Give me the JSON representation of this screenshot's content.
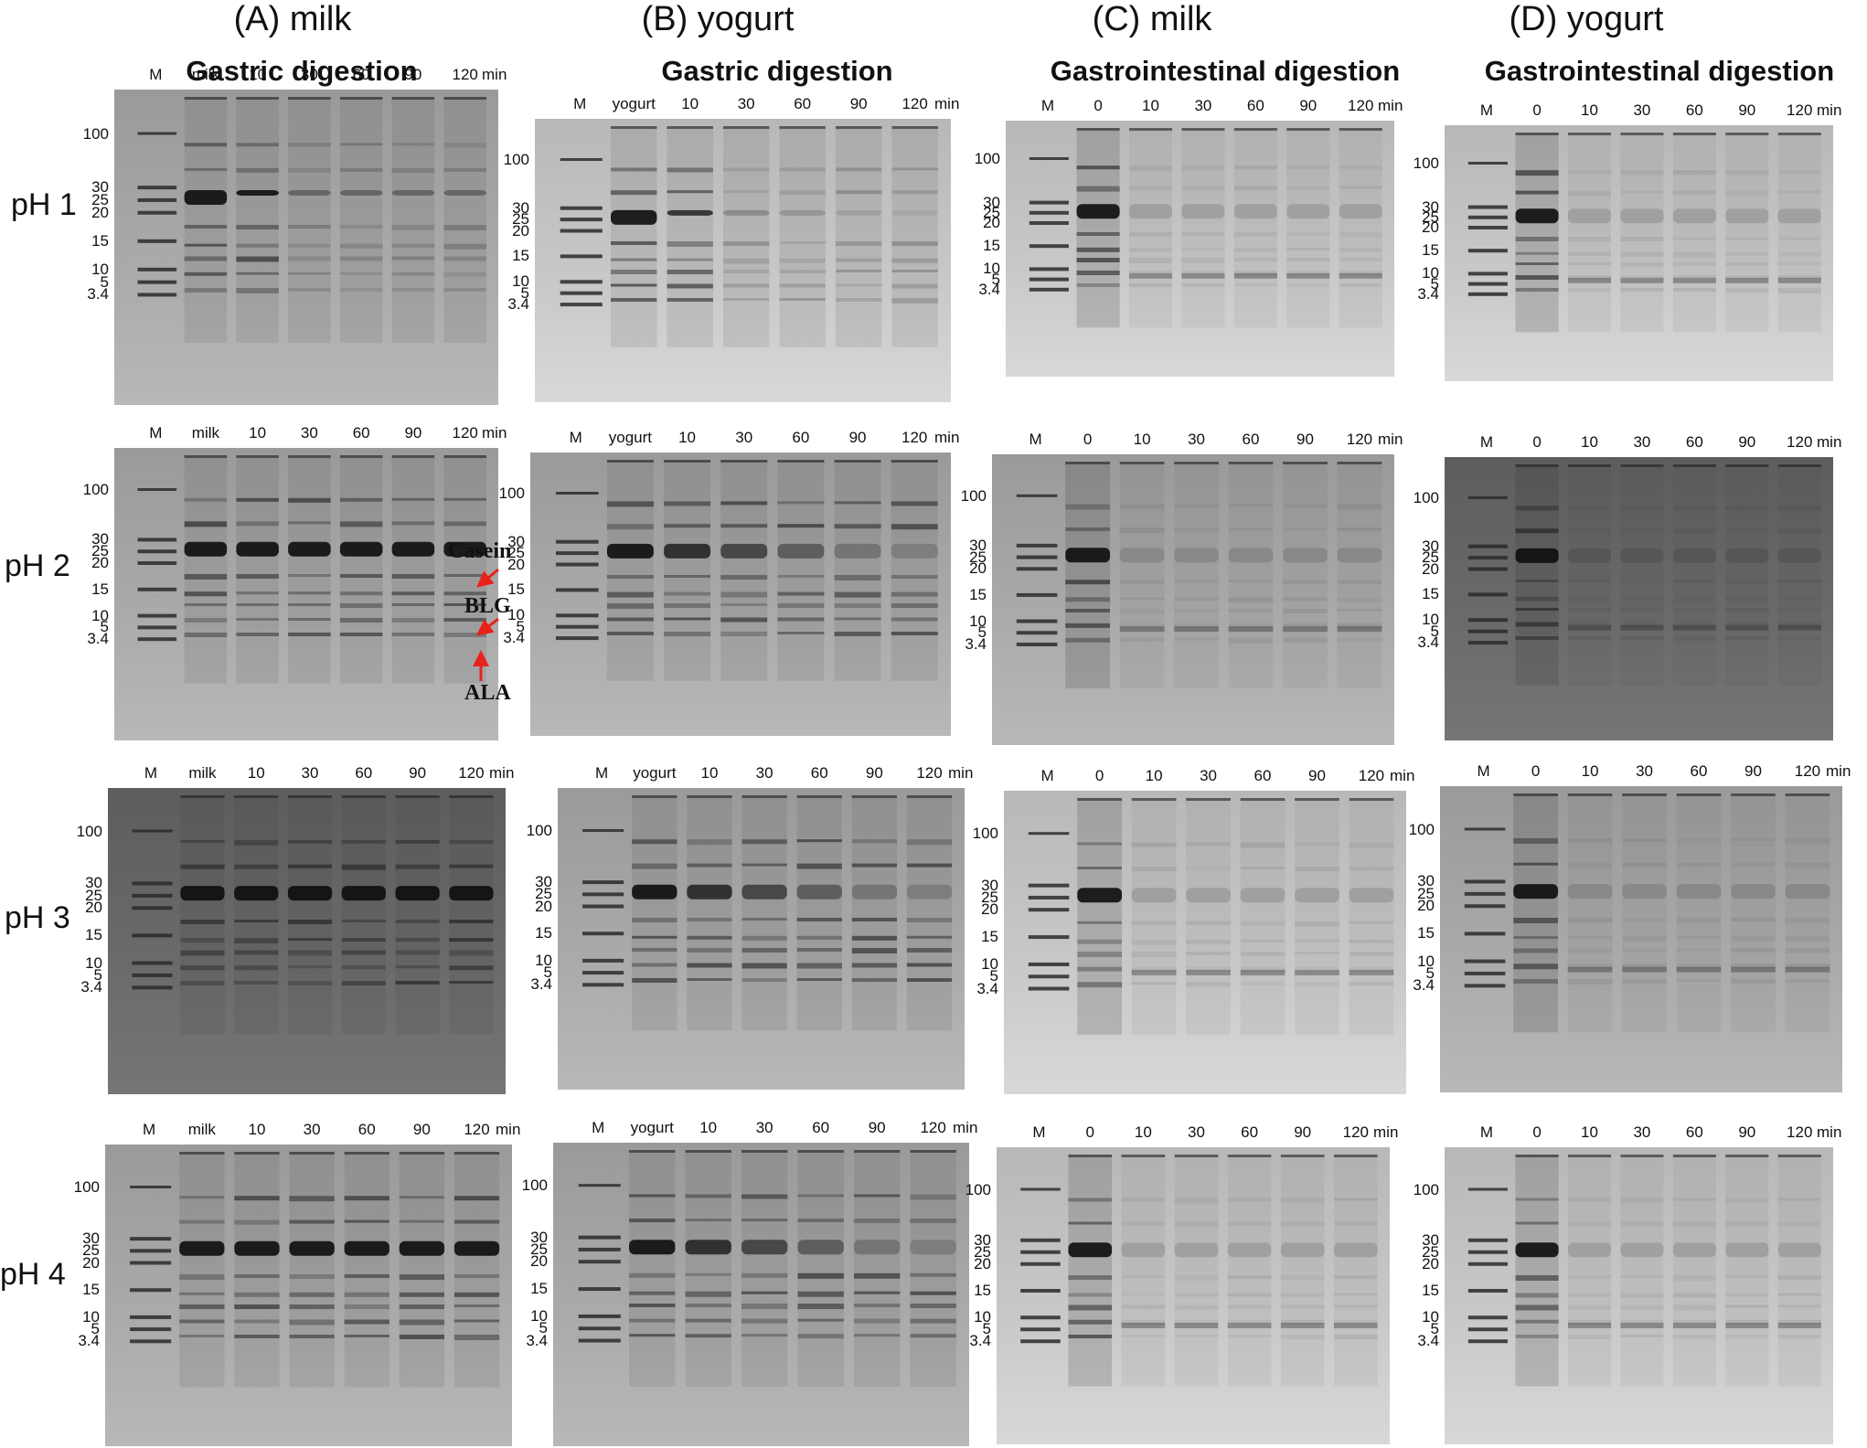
{
  "columns": [
    {
      "title": "(A) milk",
      "subtitle": "Gastric digestion"
    },
    {
      "title": "(B) yogurt",
      "subtitle": "Gastric digestion"
    },
    {
      "title": "(C) milk",
      "subtitle": "Gastrointestinal digestion"
    },
    {
      "title": "(D) yogurt",
      "subtitle": "Gastrointestinal digestion"
    }
  ],
  "rows": [
    "pH 1",
    "pH 2",
    "pH 3",
    "pH 4"
  ],
  "lanes": {
    "A": [
      "M",
      "milk",
      "10",
      "30",
      "60",
      "90",
      "120"
    ],
    "B": [
      "M",
      "yogurt",
      "10",
      "30",
      "60",
      "90",
      "120"
    ],
    "C": [
      "M",
      "0",
      "10",
      "30",
      "60",
      "90",
      "120"
    ],
    "D": [
      "M",
      "0",
      "10",
      "30",
      "60",
      "90",
      "120"
    ]
  },
  "time_unit": "min",
  "mw_markers": [
    "100",
    "30",
    "25",
    "20",
    "15",
    "10",
    "5",
    "3.4"
  ],
  "annotations": {
    "casein": "Casein",
    "blg": "BLG",
    "ala": "ALA"
  },
  "annotation_color": "#e8231c"
}
